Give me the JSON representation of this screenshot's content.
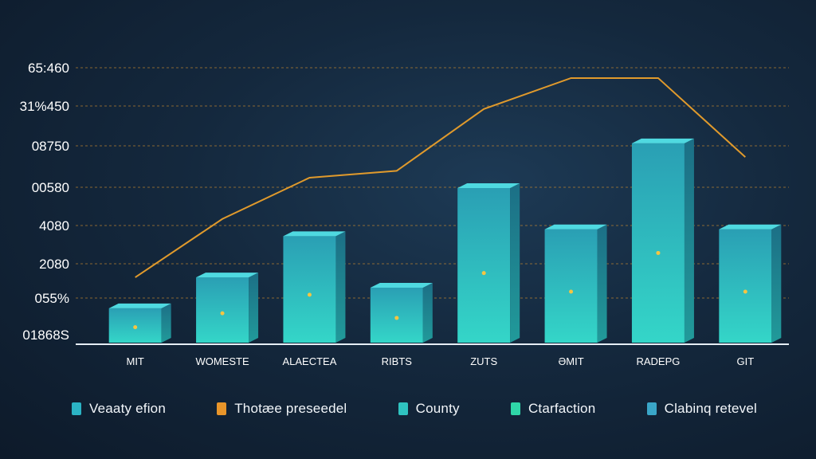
{
  "chart_data": {
    "type": "bar",
    "title": "",
    "xlabel": "",
    "ylabel": "",
    "y_tick_labels": [
      "65:460",
      "31%450",
      "08750",
      "00580",
      "4080",
      "2080",
      "055%",
      "01868S"
    ],
    "categories": [
      "MIT",
      "WOMESTE",
      "ALAECTEA",
      "RIBTS",
      "ZUTS",
      "ƏMIT",
      "RADEPG",
      "GIT"
    ],
    "series": [
      {
        "kind": "bar",
        "values": [
          1.0,
          1.9,
          3.1,
          1.6,
          4.5,
          3.3,
          5.8,
          3.3
        ],
        "color": "#2ec4c9"
      },
      {
        "kind": "line",
        "values": [
          1.9,
          3.6,
          4.8,
          5.0,
          6.8,
          7.7,
          7.7,
          5.4
        ],
        "color": "#e09a2c"
      }
    ],
    "ylim": [
      0,
      8
    ],
    "grid": true,
    "legend": [
      {
        "label": "Veaaty efion",
        "color": "#2bb3c4"
      },
      {
        "label": "Thotæe preseedel",
        "color": "#e8952a"
      },
      {
        "label": "County",
        "color": "#2fc3c0"
      },
      {
        "label": "Ctarfaction",
        "color": "#2fd6a8"
      },
      {
        "label": "Clabinq retevel",
        "color": "#3aa6c8"
      }
    ],
    "legend_position": "bottom"
  }
}
